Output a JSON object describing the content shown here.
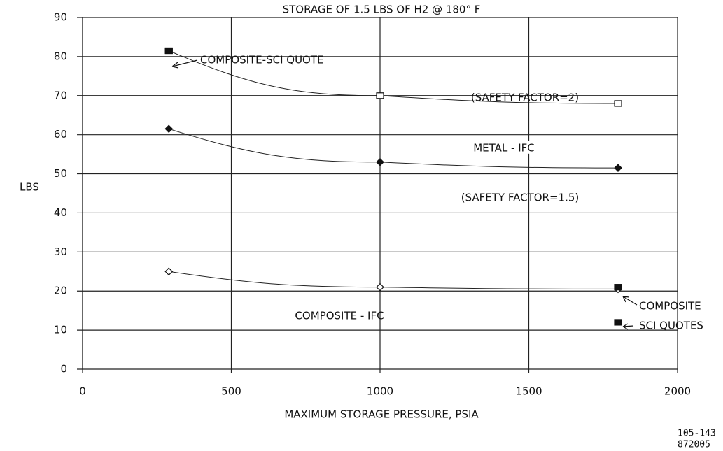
{
  "chart_data": {
    "type": "line",
    "title": "STORAGE OF 1.5 LBS OF H2 @ 180° F",
    "x_label": "MAXIMUM STORAGE PRESSURE, PSIA",
    "y_label": "LBS",
    "xlim": [
      0,
      2000
    ],
    "xticks": [
      0,
      500,
      1000,
      1500,
      2000
    ],
    "ylim": [
      0,
      90
    ],
    "yticks": [
      0,
      10,
      20,
      30,
      40,
      50,
      60,
      70,
      80,
      90
    ],
    "grid": true,
    "series": [
      {
        "color": "#222222",
        "marker": "hollow-square",
        "x": [
          290,
          1000,
          1800
        ],
        "values": [
          81.5,
          70,
          68
        ]
      },
      {
        "color": "#222222",
        "marker": "diamond",
        "x": [
          290,
          1000,
          1800
        ],
        "values": [
          61.5,
          53,
          51.5
        ]
      },
      {
        "color": "#222222",
        "marker": "hollow-diamond",
        "x": [
          290,
          1000,
          1800
        ],
        "values": [
          25,
          21,
          20.5
        ]
      },
      {
        "color": "#111111",
        "marker": "filled-square",
        "type": "scatter",
        "x": [
          290,
          1800,
          1800
        ],
        "values": [
          81.5,
          21,
          12
        ]
      }
    ],
    "annotations": [
      "COMPOSITE-SCI QUOTE",
      "(SAFETY FACTOR=2)",
      "METAL - IFC",
      "(SAFETY FACTOR=1.5)",
      "COMPOSITE - IFC",
      "COMPOSITE",
      "SCI QUOTES",
      "105-143",
      "872005"
    ]
  }
}
